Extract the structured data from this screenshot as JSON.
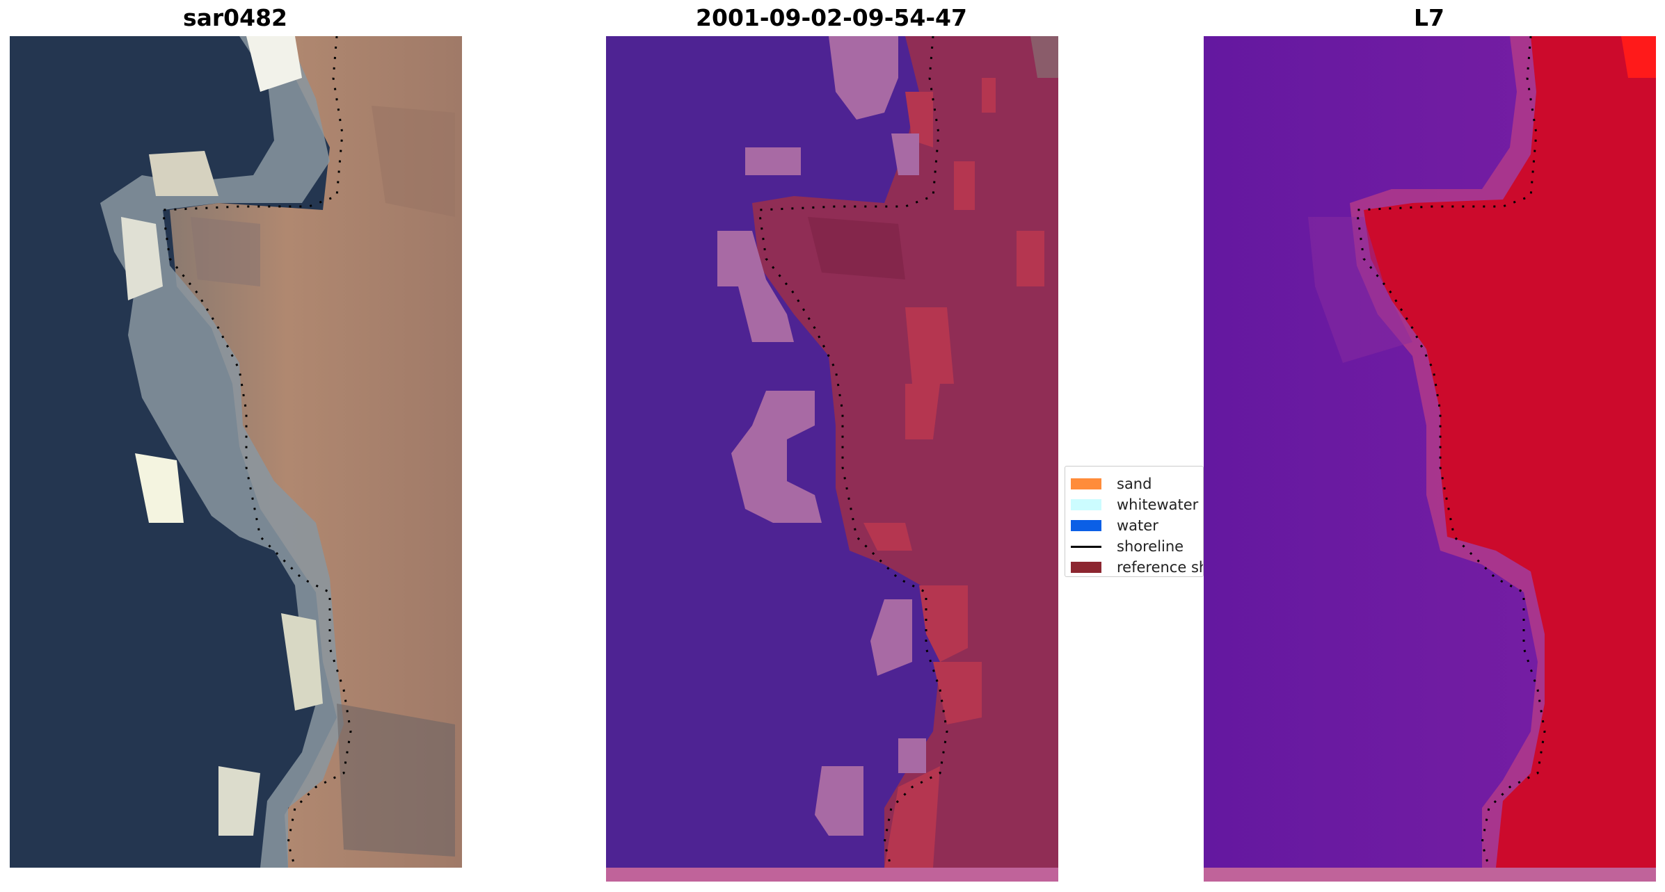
{
  "panels": [
    {
      "title": "sar0482"
    },
    {
      "title": "2001-09-02-09-54-47"
    },
    {
      "title": "L7"
    }
  ],
  "legend": {
    "items": [
      {
        "label": "sand",
        "color": "#ff8c3a"
      },
      {
        "label": "whitewater",
        "color": "#ccfcff"
      },
      {
        "label": "water",
        "color": "#0b5fe6"
      },
      {
        "label": "shoreline",
        "color": "#000000"
      },
      {
        "label": "reference shoreline",
        "color": "#8c2630"
      }
    ]
  },
  "colors": {
    "sea_dark": "#243650",
    "land_brown": "#a58370",
    "surf_white": "#d8d8c8",
    "class_water": "#4e2393",
    "class_whitewater": "#a86aa4",
    "class_sand": "#b53650",
    "class_land": "#902d55",
    "index_low": "#6418a0",
    "index_high": "#cc0a2c",
    "bottom_band": "#c0639a"
  }
}
